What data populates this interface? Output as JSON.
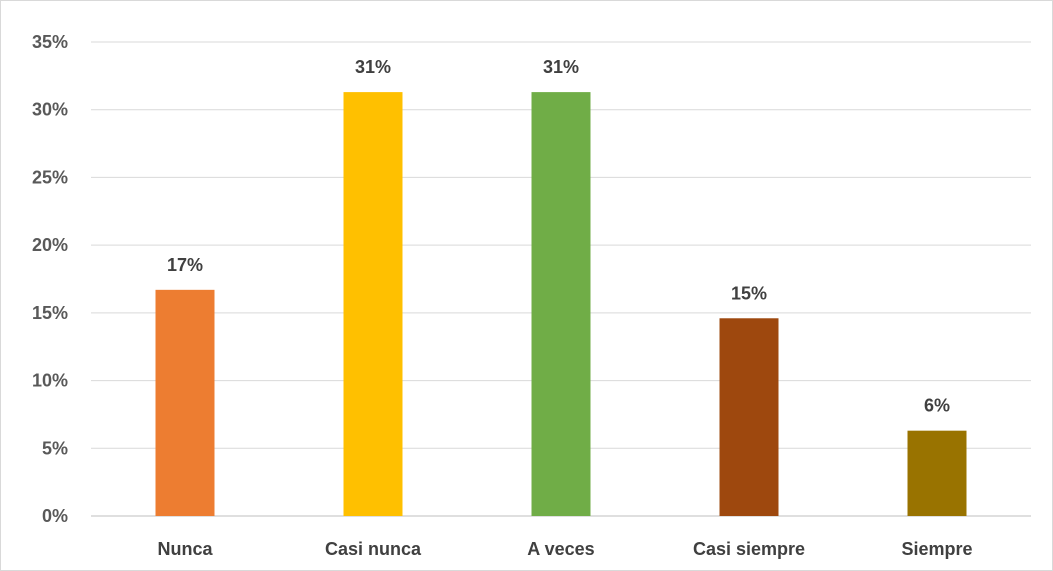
{
  "chart_data": {
    "type": "bar",
    "categories": [
      "Nunca",
      "Casi nunca",
      "A veces",
      "Casi siempre",
      "Siempre"
    ],
    "values": [
      16.7,
      31.3,
      31.3,
      14.6,
      6.3
    ],
    "data_labels": [
      "17%",
      "31%",
      "31%",
      "15%",
      "6%"
    ],
    "colors": [
      "#ed7d31",
      "#ffc000",
      "#70ad47",
      "#9e480e",
      "#997300"
    ],
    "ylim": [
      0,
      35
    ],
    "yticks": [
      0,
      5,
      10,
      15,
      20,
      25,
      30,
      35
    ],
    "ytick_labels": [
      "0%",
      "5%",
      "10%",
      "15%",
      "20%",
      "25%",
      "30%",
      "35%"
    ],
    "title": "",
    "xlabel": "",
    "ylabel": "",
    "grid": true,
    "legend": false
  }
}
